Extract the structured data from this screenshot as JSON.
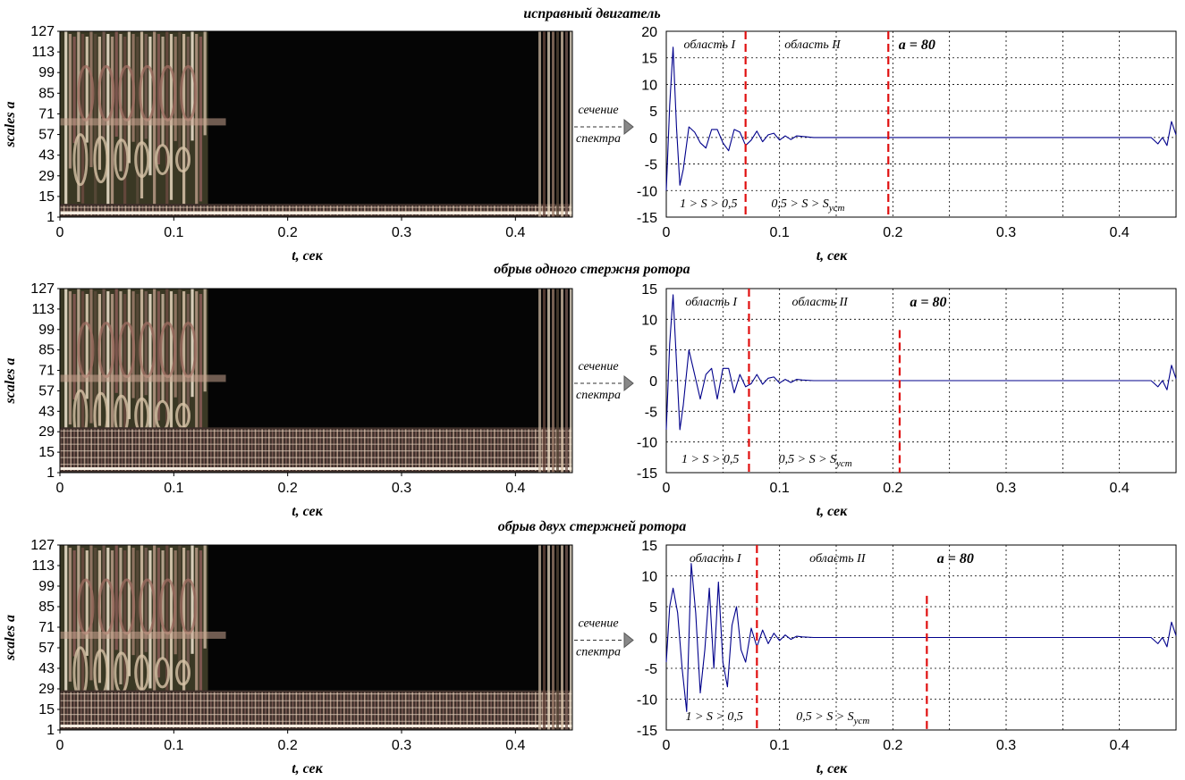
{
  "chart_data": [
    {
      "type": "heatmap",
      "title": "исправный двигатель",
      "xlabel": "t, сек",
      "ylabel": "scales a",
      "xlim": [
        0,
        0.45
      ],
      "ylim": [
        1,
        127
      ],
      "xticks": [
        "0",
        "0.1",
        "0.2",
        "0.3",
        "0.4"
      ],
      "yticks": [
        "1",
        "15",
        "29",
        "43",
        "57",
        "71",
        "85",
        "99",
        "113",
        "127"
      ],
      "band_top_scale": 10,
      "dark_start_t": 0.13,
      "arrow_label": [
        "сечение",
        "спектра"
      ]
    },
    {
      "type": "line",
      "xlabel": "t, сек",
      "xlim": [
        0,
        0.45
      ],
      "ylim": [
        -15,
        20
      ],
      "xticks": [
        "0",
        "0.1",
        "0.2",
        "0.3",
        "0.4"
      ],
      "yticks": [
        "-15",
        "-10",
        "-5",
        "0",
        "5",
        "10",
        "15",
        "20"
      ],
      "boundaries": [
        0.07,
        0.196
      ],
      "annotations": {
        "region1": "область I",
        "region2": "область II",
        "a_label": "a = 80",
        "cond1": "1 > S > 0,5",
        "cond2": "0,5 > S > S",
        "cond2_sub": "уст"
      },
      "series": [
        {
          "color": "#00008b",
          "x": [
            0,
            0.003,
            0.006,
            0.009,
            0.012,
            0.015,
            0.02,
            0.025,
            0.03,
            0.035,
            0.04,
            0.045,
            0.05,
            0.055,
            0.06,
            0.065,
            0.07,
            0.075,
            0.08,
            0.085,
            0.09,
            0.095,
            0.1,
            0.105,
            0.11,
            0.115,
            0.12,
            0.13,
            0.14,
            0.428,
            0.434,
            0.438,
            0.442,
            0.446,
            0.45
          ],
          "y": [
            -10,
            6,
            17,
            2,
            -9,
            -6,
            2,
            1,
            -1,
            -2,
            1.5,
            1.5,
            -1,
            -2.5,
            1.5,
            1,
            -1.5,
            -0.5,
            1.2,
            -0.8,
            0.5,
            0.8,
            -0.5,
            0.3,
            -0.4,
            0.3,
            0.2,
            0,
            0,
            0,
            -1.2,
            0,
            -1.5,
            3,
            0.5
          ]
        }
      ]
    },
    {
      "type": "heatmap",
      "title": "обрыв одного стержня ротора",
      "xlabel": "t, сек",
      "ylabel": "scales a",
      "xlim": [
        0,
        0.45
      ],
      "ylim": [
        1,
        127
      ],
      "xticks": [
        "0",
        "0.1",
        "0.2",
        "0.3",
        "0.4"
      ],
      "yticks": [
        "1",
        "15",
        "29",
        "43",
        "57",
        "71",
        "85",
        "99",
        "113",
        "127"
      ],
      "band_top_scale": 32,
      "dark_start_t": 0.13,
      "arrow_label": [
        "сечение",
        "спектра"
      ]
    },
    {
      "type": "line",
      "xlabel": "t, сек",
      "xlim": [
        0,
        0.45
      ],
      "ylim": [
        -15,
        15
      ],
      "xticks": [
        "0",
        "0.1",
        "0.2",
        "0.3",
        "0.4"
      ],
      "yticks": [
        "-15",
        "-10",
        "-5",
        "0",
        "5",
        "10",
        "15"
      ],
      "boundaries": [
        0.073,
        0.206
      ],
      "annotations": {
        "region1": "область I",
        "region2": "область II",
        "a_label": "a = 80",
        "cond1": "1 > S > 0,5",
        "cond2": "0,5 > S > S",
        "cond2_sub": "уст"
      },
      "series": [
        {
          "color": "#00008b",
          "x": [
            0,
            0.003,
            0.006,
            0.009,
            0.012,
            0.015,
            0.02,
            0.025,
            0.03,
            0.035,
            0.04,
            0.045,
            0.05,
            0.055,
            0.06,
            0.065,
            0.07,
            0.075,
            0.08,
            0.085,
            0.09,
            0.095,
            0.1,
            0.105,
            0.11,
            0.115,
            0.12,
            0.13,
            0.14,
            0.428,
            0.434,
            0.438,
            0.442,
            0.446,
            0.45
          ],
          "y": [
            -8,
            6,
            14,
            3,
            -8,
            -4,
            5,
            1,
            -3,
            1,
            2,
            -3,
            2,
            2,
            -2,
            1,
            -1,
            -0.5,
            1,
            -0.6,
            0.4,
            0.6,
            -0.4,
            0.2,
            -0.3,
            0.2,
            0.1,
            0,
            0,
            0,
            -1,
            0,
            -1.5,
            2.5,
            0.3
          ]
        }
      ]
    },
    {
      "type": "heatmap",
      "title": "обрыв двух стержней ротора",
      "xlabel": "t, сек",
      "ylabel": "scales a",
      "xlim": [
        0,
        0.45
      ],
      "ylim": [
        1,
        127
      ],
      "xticks": [
        "0",
        "0.1",
        "0.2",
        "0.3",
        "0.4"
      ],
      "yticks": [
        "1",
        "15",
        "29",
        "43",
        "57",
        "71",
        "85",
        "99",
        "113",
        "127"
      ],
      "band_top_scale": 28,
      "dark_start_t": 0.13,
      "arrow_label": [
        "сечение",
        "спектра"
      ]
    },
    {
      "type": "line",
      "xlabel": "t, сек",
      "xlim": [
        0,
        0.45
      ],
      "ylim": [
        -15,
        15
      ],
      "xticks": [
        "0",
        "0.1",
        "0.2",
        "0.3",
        "0.4"
      ],
      "yticks": [
        "-15",
        "-10",
        "-5",
        "0",
        "5",
        "10",
        "15"
      ],
      "boundaries": [
        0.08,
        0.23
      ],
      "annotations": {
        "region1": "область I",
        "region2": "область II",
        "a_label": "a = 80",
        "cond1": "1 > S > 0,5",
        "cond2": "0,5 > S > S",
        "cond2_sub": "уст"
      },
      "series": [
        {
          "color": "#00008b",
          "x": [
            0,
            0.003,
            0.006,
            0.01,
            0.014,
            0.018,
            0.022,
            0.026,
            0.03,
            0.034,
            0.038,
            0.042,
            0.046,
            0.05,
            0.054,
            0.058,
            0.062,
            0.066,
            0.07,
            0.075,
            0.08,
            0.085,
            0.09,
            0.095,
            0.1,
            0.105,
            0.11,
            0.115,
            0.12,
            0.13,
            0.14,
            0.428,
            0.434,
            0.438,
            0.442,
            0.446,
            0.45
          ],
          "y": [
            -4,
            5,
            8,
            4,
            -5,
            -12,
            12,
            4,
            -9,
            -2,
            8,
            -5,
            9,
            -4,
            -8,
            2,
            5,
            -2,
            -4,
            1.5,
            -1.5,
            1.2,
            -1,
            0.7,
            -0.5,
            0.4,
            -0.3,
            0.2,
            0.1,
            0,
            0,
            0,
            -1,
            0,
            -1.5,
            2.5,
            0.3
          ]
        }
      ]
    }
  ]
}
